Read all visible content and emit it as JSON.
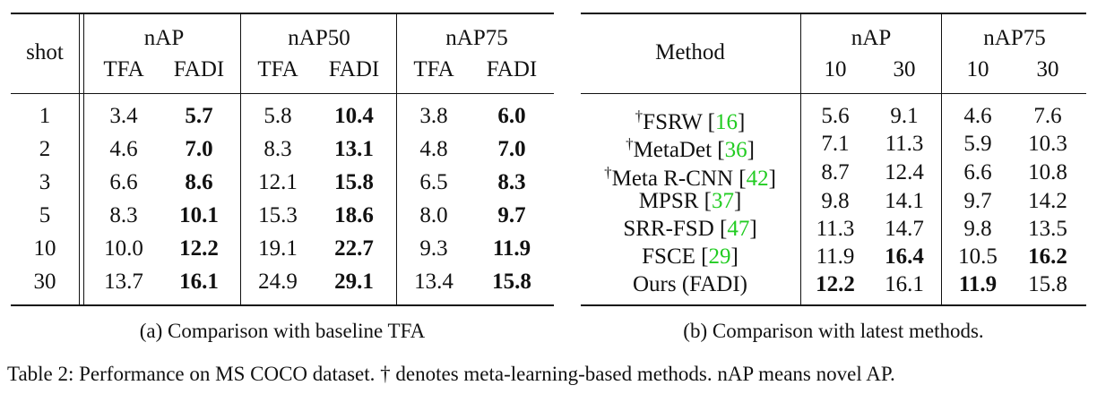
{
  "table_a": {
    "header": {
      "shot": "shot",
      "groups": [
        "nAP",
        "nAP50",
        "nAP75"
      ],
      "sub": [
        "TFA",
        "FADI",
        "TFA",
        "FADI",
        "TFA",
        "FADI"
      ]
    },
    "rows": [
      {
        "shot": "1",
        "vals": [
          "3.4",
          "5.7",
          "5.8",
          "10.4",
          "3.8",
          "6.0"
        ]
      },
      {
        "shot": "2",
        "vals": [
          "4.6",
          "7.0",
          "8.3",
          "13.1",
          "4.8",
          "7.0"
        ]
      },
      {
        "shot": "3",
        "vals": [
          "6.6",
          "8.6",
          "12.1",
          "15.8",
          "6.5",
          "8.3"
        ]
      },
      {
        "shot": "5",
        "vals": [
          "8.3",
          "10.1",
          "15.3",
          "18.6",
          "8.0",
          "9.7"
        ]
      },
      {
        "shot": "10",
        "vals": [
          "10.0",
          "12.2",
          "19.1",
          "22.7",
          "9.3",
          "11.9"
        ]
      },
      {
        "shot": "30",
        "vals": [
          "13.7",
          "16.1",
          "24.9",
          "29.1",
          "13.4",
          "15.8"
        ]
      }
    ],
    "caption": "(a) Comparison with baseline TFA"
  },
  "table_b": {
    "header": {
      "method": "Method",
      "groups": [
        "nAP",
        "nAP75"
      ],
      "sub": [
        "10",
        "30",
        "10",
        "30"
      ]
    },
    "rows": [
      {
        "dagger": "†",
        "name": "FSRW ",
        "cite": "16",
        "vals": [
          "5.6",
          "9.1",
          "4.6",
          "7.6"
        ]
      },
      {
        "dagger": "†",
        "name": "MetaDet ",
        "cite": "36",
        "vals": [
          "7.1",
          "11.3",
          "5.9",
          "10.3"
        ]
      },
      {
        "dagger": "†",
        "name": "Meta R-CNN ",
        "cite": "42",
        "vals": [
          "8.7",
          "12.4",
          "6.6",
          "10.8"
        ]
      },
      {
        "dagger": "",
        "name": "MPSR ",
        "cite": "37",
        "vals": [
          "9.8",
          "14.1",
          "9.7",
          "14.2"
        ]
      },
      {
        "dagger": "",
        "name": "SRR-FSD ",
        "cite": "47",
        "vals": [
          "11.3",
          "14.7",
          "9.8",
          "13.5"
        ]
      },
      {
        "dagger": "",
        "name": "FSCE ",
        "cite": "29",
        "vals": [
          "11.9",
          "16.4",
          "10.5",
          "16.2"
        ]
      },
      {
        "dagger": "",
        "name": "Ours (FADI)",
        "cite": "",
        "vals": [
          "12.2",
          "16.1",
          "11.9",
          "15.8"
        ]
      }
    ],
    "caption": "(b) Comparison with latest methods."
  },
  "main_caption": "Table 2: Performance on MS COCO dataset. † denotes meta-learning-based methods. nAP means novel AP."
}
